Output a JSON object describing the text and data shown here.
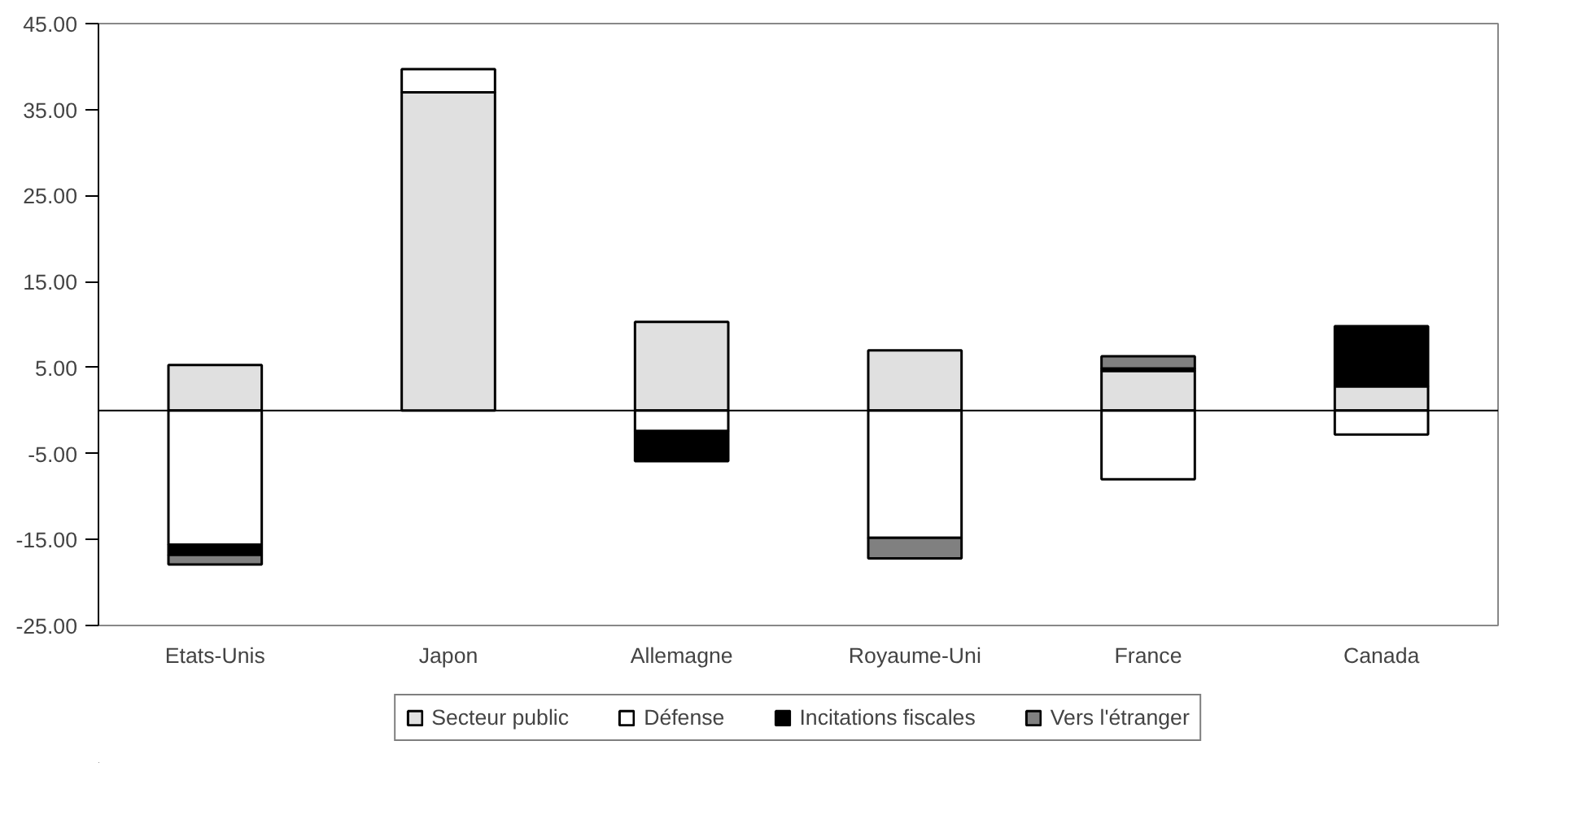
{
  "chart_data": {
    "type": "bar",
    "stacked": true,
    "categories": [
      "Etats-Unis",
      "Japon",
      "Allemagne",
      "Royaume-Uni",
      "France",
      "Canada"
    ],
    "series": [
      {
        "name": "Secteur public",
        "color": "#e0e0e0",
        "values": [
          5.3,
          37.0,
          10.3,
          7.0,
          4.6,
          2.8
        ]
      },
      {
        "name": "Défense",
        "color": "#ffffff",
        "values": [
          -15.6,
          2.7,
          -2.4,
          -14.8,
          -8.0,
          -2.8
        ]
      },
      {
        "name": "Incitations fiscales",
        "color": "#000000",
        "values": [
          -1.2,
          null,
          -3.5,
          null,
          0.3,
          7.0
        ]
      },
      {
        "name": "Vers l'étranger",
        "color": "#808080",
        "values": [
          -1.1,
          null,
          null,
          -2.4,
          1.4,
          null
        ]
      }
    ],
    "ylim": [
      -25,
      45
    ],
    "yticks": [
      {
        "value": -25,
        "label": "-25.00"
      },
      {
        "value": -15,
        "label": "-15.00"
      },
      {
        "value": -5,
        "label": "-5.00"
      },
      {
        "value": 5,
        "label": "5.00"
      },
      {
        "value": 15,
        "label": "15.00"
      },
      {
        "value": 25,
        "label": "25.00"
      },
      {
        "value": 35,
        "label": "35.00"
      },
      {
        "value": 45,
        "label": "45.00"
      }
    ],
    "grid": false,
    "legend": "bottom"
  }
}
